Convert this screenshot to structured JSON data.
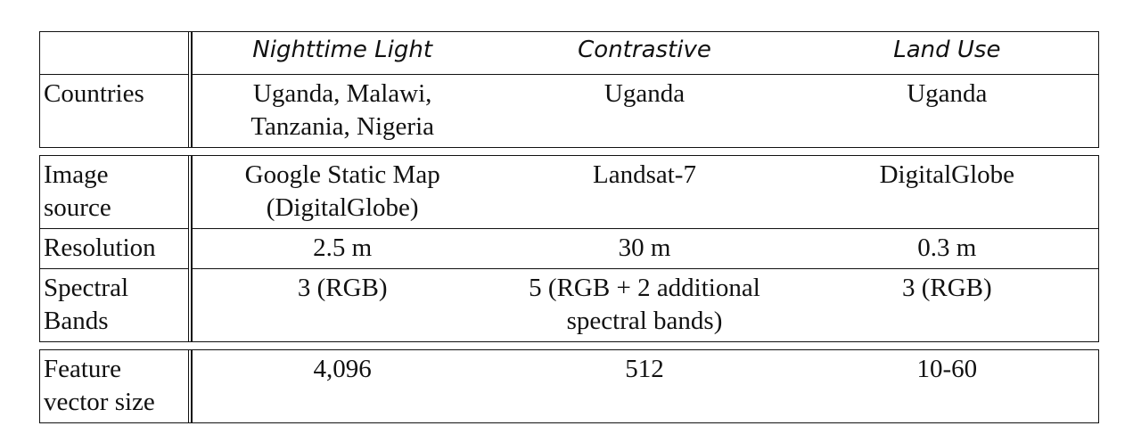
{
  "header": {
    "corner": "",
    "columns": [
      "Nighttime Light",
      "Contrastive",
      "Land Use"
    ]
  },
  "rows": {
    "countries": {
      "label": [
        "Countries"
      ],
      "values": [
        [
          "Uganda, Malawi,",
          "Tanzania, Nigeria"
        ],
        [
          "Uganda"
        ],
        [
          "Uganda"
        ]
      ]
    },
    "image_source": {
      "label": [
        "Image",
        "source"
      ],
      "values": [
        [
          "Google Static Map",
          "(DigitalGlobe)"
        ],
        [
          "Landsat-7"
        ],
        [
          "DigitalGlobe"
        ]
      ]
    },
    "resolution": {
      "label": [
        "Resolution"
      ],
      "values": [
        [
          "2.5 m"
        ],
        [
          "30 m"
        ],
        [
          "0.3 m"
        ]
      ]
    },
    "spectral_bands": {
      "label": [
        "Spectral",
        "Bands"
      ],
      "values": [
        [
          "3 (RGB)"
        ],
        [
          "5 (RGB + 2 additional",
          "spectral bands)"
        ],
        [
          "3 (RGB)"
        ]
      ]
    },
    "feature_vector_size": {
      "label": [
        "Feature",
        "vector size"
      ],
      "values": [
        [
          "4,096"
        ],
        [
          "512"
        ],
        [
          "10-60"
        ]
      ]
    }
  }
}
